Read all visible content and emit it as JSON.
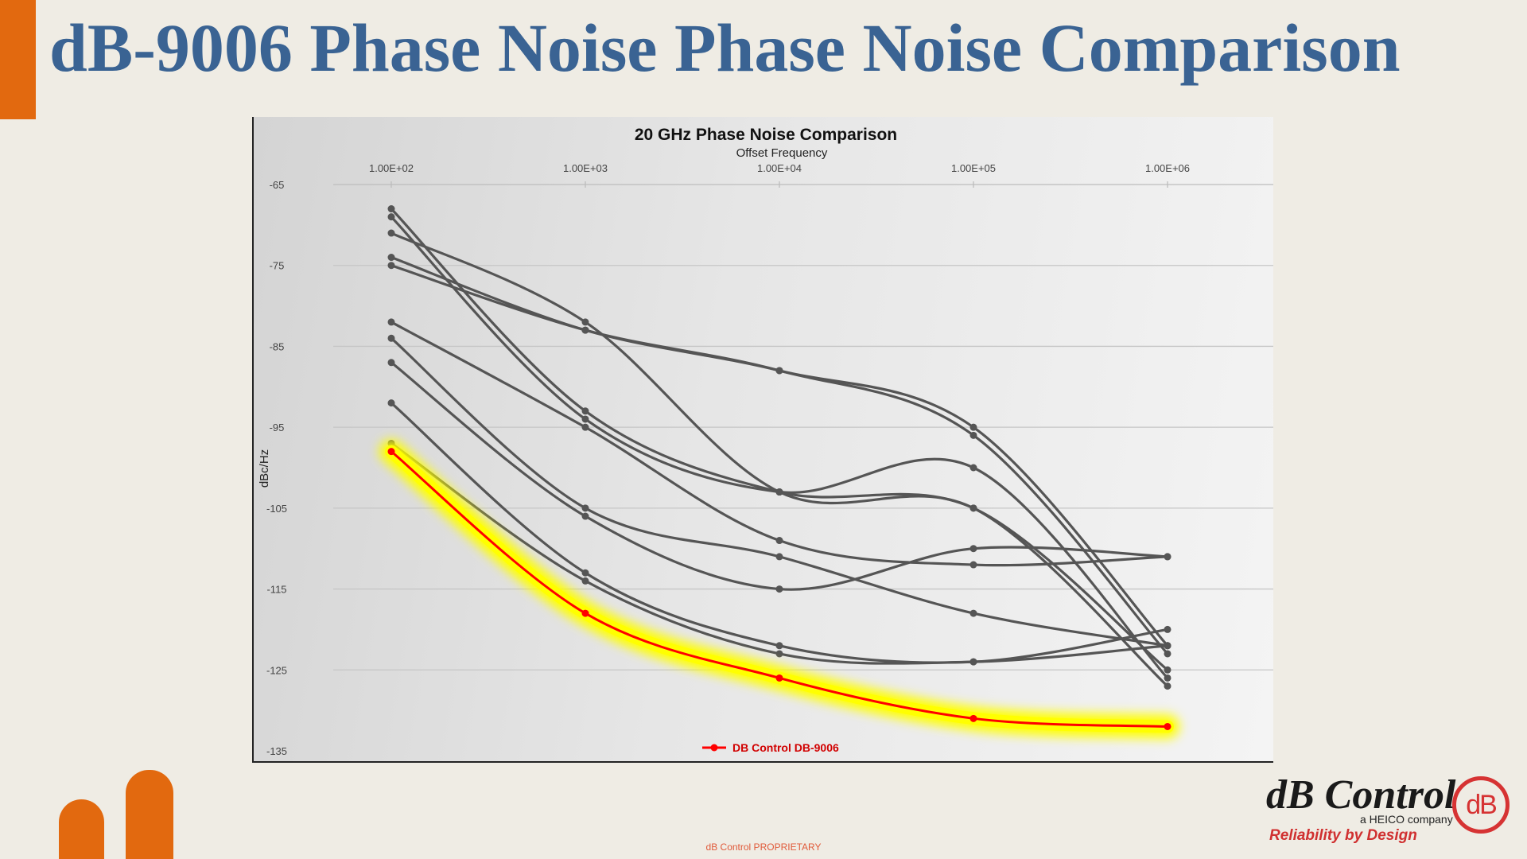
{
  "slide": {
    "title": "dB-9006 Phase Noise Phase Noise Comparison",
    "footer": "dB Control PROPRIETARY",
    "accent_color": "#e2690f",
    "title_color": "#3a6393"
  },
  "logo": {
    "name": "dB Control",
    "subtitle": "a HEICO company",
    "tagline": "Reliability by Design",
    "mark": "dB"
  },
  "chart_data": {
    "type": "line",
    "title": "20 GHz Phase Noise Comparison",
    "xlabel": "Offset Frequency",
    "ylabel": "dBc/Hz",
    "x_scale": "log",
    "x": [
      100,
      1000,
      10000,
      100000,
      1000000
    ],
    "x_tick_labels": [
      "1.00E+02",
      "1.00E+03",
      "1.00E+04",
      "1.00E+05",
      "1.00E+06"
    ],
    "x_axis_position": "top",
    "ylim": [
      -135,
      -65
    ],
    "y_ticks": [
      -65,
      -75,
      -85,
      -95,
      -105,
      -115,
      -125,
      -135
    ],
    "grid": true,
    "legend_position": "bottom-center",
    "series": [
      {
        "name": "",
        "values": [
          -68,
          -93,
          -103,
          -105,
          -125
        ],
        "color": "#555555"
      },
      {
        "name": "",
        "values": [
          -69,
          -94,
          -103,
          -100,
          -126
        ],
        "color": "#555555"
      },
      {
        "name": "",
        "values": [
          -71,
          -82,
          -103,
          -105,
          -127
        ],
        "color": "#555555"
      },
      {
        "name": "",
        "values": [
          -74,
          -83,
          -88,
          -95,
          -122
        ],
        "color": "#555555"
      },
      {
        "name": "",
        "values": [
          -75,
          -83,
          -88,
          -96,
          -123
        ],
        "color": "#555555"
      },
      {
        "name": "",
        "values": [
          -82,
          -95,
          -109,
          -112,
          -111
        ],
        "color": "#555555"
      },
      {
        "name": "",
        "values": [
          -84,
          -105,
          -111,
          -118,
          -122
        ],
        "color": "#555555"
      },
      {
        "name": "",
        "values": [
          -87,
          -106,
          -115,
          -110,
          -111
        ],
        "color": "#555555"
      },
      {
        "name": "",
        "values": [
          -92,
          -113,
          -122,
          -124,
          -120
        ],
        "color": "#555555"
      },
      {
        "name": "",
        "values": [
          -97,
          -114,
          -123,
          -124,
          -122
        ],
        "color": "#555555"
      },
      {
        "name": "DB Control DB-9006",
        "values": [
          -98,
          -118,
          -126,
          -131,
          -132
        ],
        "color": "#ff0000",
        "highlight": "#ffff00"
      }
    ]
  }
}
